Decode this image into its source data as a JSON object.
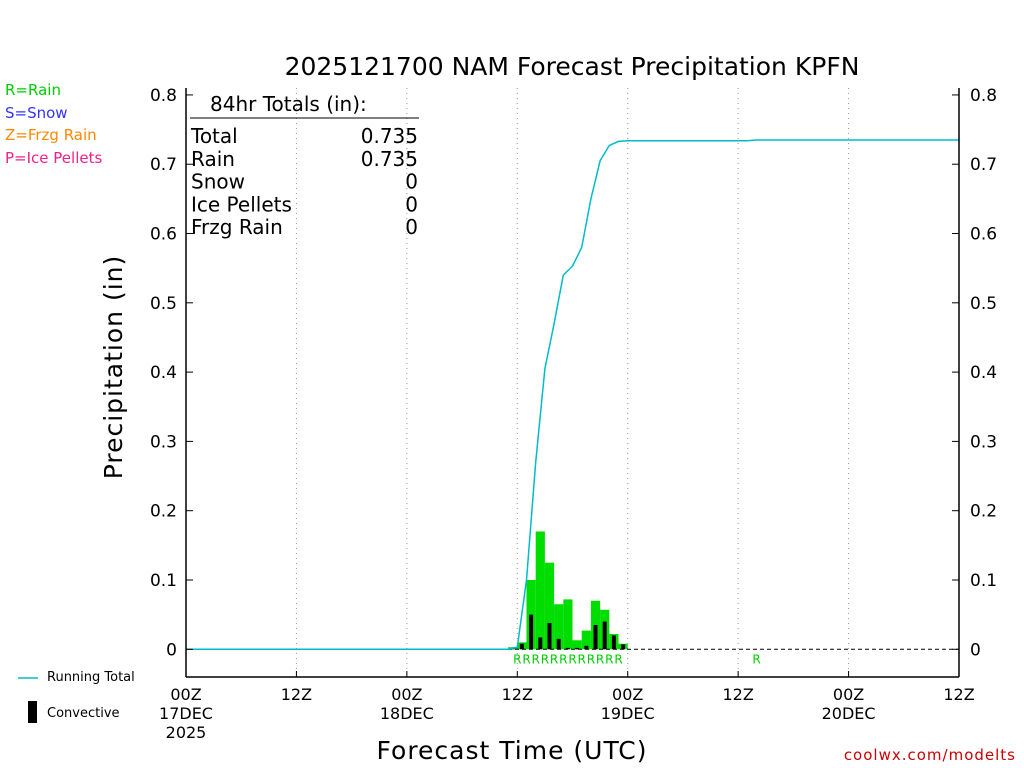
{
  "precip_types": [
    {
      "label": "R=Rain",
      "color": "#00cc00"
    },
    {
      "label": "S=Snow",
      "color": "#3333ff"
    },
    {
      "label": "Z=Frzg Rain",
      "color": "#ff8800"
    },
    {
      "label": "P=Ice Pellets",
      "color": "#ee2288"
    }
  ],
  "legend": {
    "running_total_label": "Running Total",
    "convective_label": "Convective",
    "running_total_color": "#00bbcc",
    "convective_color": "#000000",
    "bar_color": "#00dd00"
  },
  "totals": {
    "header": "84hr Totals (in):",
    "rows": [
      {
        "name": "Total",
        "value": "0.735"
      },
      {
        "name": "Rain",
        "value": "0.735"
      },
      {
        "name": "Snow",
        "value": "0"
      },
      {
        "name": "Ice Pellets",
        "value": "0"
      },
      {
        "name": "Frzg Rain",
        "value": "0"
      }
    ]
  },
  "credit": "coolwx.com/modelts",
  "chart_data": {
    "type": "bar",
    "title": "2025121700 NAM Forecast Precipitation KPFN",
    "xlabel": "Forecast Time (UTC)",
    "ylabel": "Precipitation (in)",
    "xlim_hours": [
      0,
      84
    ],
    "ylim": [
      -0.04,
      0.81
    ],
    "yticks": [
      0,
      0.1,
      0.2,
      0.3,
      0.4,
      0.5,
      0.6,
      0.7,
      0.8
    ],
    "ytick_labels": [
      "0",
      "0.1",
      "0.2",
      "0.3",
      "0.4",
      "0.5",
      "0.6",
      "0.7",
      "0.8"
    ],
    "xticks": [
      {
        "hour": 0,
        "line1": "00Z",
        "line2": "17DEC",
        "line3": "2025"
      },
      {
        "hour": 12,
        "line1": "12Z",
        "line2": "",
        "line3": ""
      },
      {
        "hour": 24,
        "line1": "00Z",
        "line2": "18DEC",
        "line3": ""
      },
      {
        "hour": 36,
        "line1": "12Z",
        "line2": "",
        "line3": ""
      },
      {
        "hour": 48,
        "line1": "00Z",
        "line2": "19DEC",
        "line3": ""
      },
      {
        "hour": 60,
        "line1": "12Z",
        "line2": "",
        "line3": ""
      },
      {
        "hour": 72,
        "line1": "00Z",
        "line2": "20DEC",
        "line3": ""
      },
      {
        "hour": 84,
        "line1": "12Z",
        "line2": "",
        "line3": ""
      }
    ],
    "hourly_precip": [
      {
        "hour": 35.5,
        "total": 0.003,
        "convective": 0.001
      },
      {
        "hour": 36.5,
        "total": 0.01,
        "convective": 0.008
      },
      {
        "hour": 37.5,
        "total": 0.1,
        "convective": 0.05
      },
      {
        "hour": 38.5,
        "total": 0.17,
        "convective": 0.017
      },
      {
        "hour": 39.5,
        "total": 0.125,
        "convective": 0.038
      },
      {
        "hour": 40.5,
        "total": 0.065,
        "convective": 0.015
      },
      {
        "hour": 41.5,
        "total": 0.072,
        "convective": 0.002
      },
      {
        "hour": 42.5,
        "total": 0.013,
        "convective": 0.002
      },
      {
        "hour": 43.5,
        "total": 0.027,
        "convective": 0.005
      },
      {
        "hour": 44.5,
        "total": 0.07,
        "convective": 0.035
      },
      {
        "hour": 45.5,
        "total": 0.057,
        "convective": 0.04
      },
      {
        "hour": 46.5,
        "total": 0.022,
        "convective": 0.02
      },
      {
        "hour": 47.5,
        "total": 0.008,
        "convective": 0.007
      }
    ],
    "running_total": [
      {
        "hour": 0,
        "value": 0
      },
      {
        "hour": 35,
        "value": 0
      },
      {
        "hour": 36,
        "value": 0.003
      },
      {
        "hour": 37,
        "value": 0.1
      },
      {
        "hour": 38,
        "value": 0.27
      },
      {
        "hour": 39,
        "value": 0.405
      },
      {
        "hour": 40,
        "value": 0.47
      },
      {
        "hour": 41,
        "value": 0.54
      },
      {
        "hour": 42,
        "value": 0.553
      },
      {
        "hour": 43,
        "value": 0.58
      },
      {
        "hour": 44,
        "value": 0.65
      },
      {
        "hour": 45,
        "value": 0.705
      },
      {
        "hour": 46,
        "value": 0.727
      },
      {
        "hour": 47,
        "value": 0.733
      },
      {
        "hour": 48,
        "value": 0.734
      },
      {
        "hour": 61,
        "value": 0.734
      },
      {
        "hour": 62,
        "value": 0.735
      },
      {
        "hour": 84,
        "value": 0.735
      }
    ],
    "type_markers": [
      {
        "hour": 36,
        "label": "R"
      },
      {
        "hour": 37,
        "label": "R"
      },
      {
        "hour": 38,
        "label": "R"
      },
      {
        "hour": 39,
        "label": "R"
      },
      {
        "hour": 40,
        "label": "R"
      },
      {
        "hour": 41,
        "label": "R"
      },
      {
        "hour": 42,
        "label": "R"
      },
      {
        "hour": 43,
        "label": "R"
      },
      {
        "hour": 44,
        "label": "R"
      },
      {
        "hour": 45,
        "label": "R"
      },
      {
        "hour": 46,
        "label": "R"
      },
      {
        "hour": 47,
        "label": "R"
      },
      {
        "hour": 62,
        "label": "R"
      }
    ]
  }
}
